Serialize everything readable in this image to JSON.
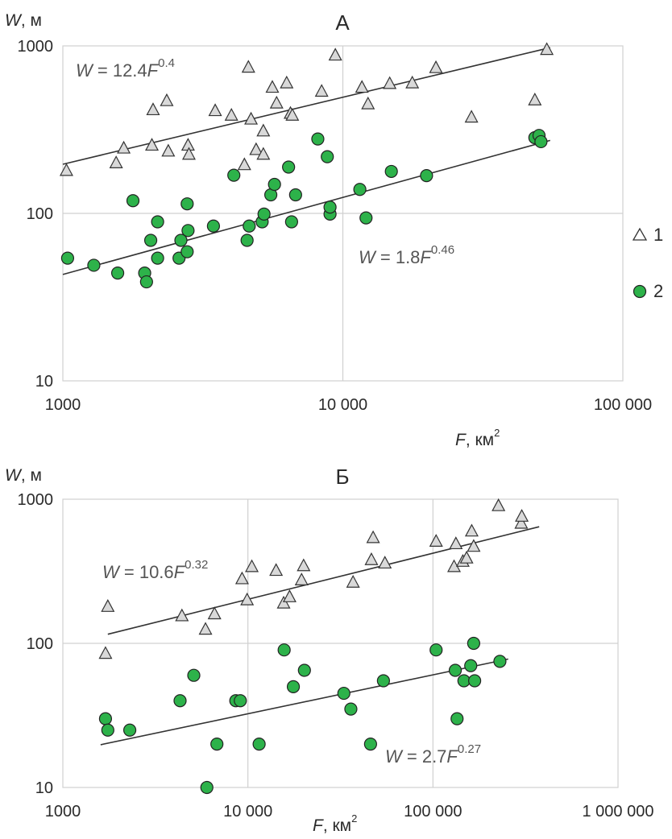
{
  "chart_data": [
    {
      "type": "scatter",
      "title": "А",
      "xlabel_var": "F",
      "xlabel_unit": ", км",
      "xlabel_exp": "2",
      "ylabel_var": "W",
      "ylabel_unit": ", м",
      "x_scale": "log",
      "y_scale": "log",
      "xlim": [
        1000,
        100000
      ],
      "ylim": [
        10,
        1000
      ],
      "x_tick_values": [
        1000,
        10000,
        100000
      ],
      "x_tick_labels": [
        "1000",
        "10 000",
        "100 000"
      ],
      "y_tick_values": [
        10,
        100,
        1000
      ],
      "y_tick_labels": [
        "10",
        "100",
        "1000"
      ],
      "grid": true,
      "legend": "right",
      "series": [
        {
          "name": "1",
          "marker": "triangle",
          "color": "#d9d9d9",
          "points": [
            [
              1030,
              180
            ],
            [
              1550,
              200
            ],
            [
              1650,
              245
            ],
            [
              2080,
              255
            ],
            [
              2380,
              235
            ],
            [
              2800,
              255
            ],
            [
              2820,
              225
            ],
            [
              2100,
              415
            ],
            [
              2350,
              470
            ],
            [
              3500,
              410
            ],
            [
              4000,
              385
            ],
            [
              4700,
              365
            ],
            [
              4600,
              745
            ],
            [
              4900,
              240
            ],
            [
              5200,
              310
            ],
            [
              5200,
              225
            ],
            [
              4450,
              195
            ],
            [
              5600,
              565
            ],
            [
              5800,
              455
            ],
            [
              6300,
              600
            ],
            [
              6500,
              395
            ],
            [
              6600,
              385
            ],
            [
              8400,
              535
            ],
            [
              9400,
              880
            ],
            [
              11700,
              565
            ],
            [
              12300,
              450
            ],
            [
              14700,
              595
            ],
            [
              17700,
              600
            ],
            [
              21500,
              740
            ],
            [
              28800,
              375
            ],
            [
              48500,
              475
            ],
            [
              53500,
              950
            ]
          ]
        },
        {
          "name": "2",
          "marker": "circle",
          "color": "#2db24a",
          "points": [
            [
              1040,
              54
            ],
            [
              1290,
              49
            ],
            [
              1570,
              44
            ],
            [
              1780,
              119
            ],
            [
              1960,
              44
            ],
            [
              1990,
              39
            ],
            [
              2060,
              69
            ],
            [
              2180,
              89
            ],
            [
              2180,
              54
            ],
            [
              2600,
              54
            ],
            [
              2640,
              69
            ],
            [
              2780,
              114
            ],
            [
              2780,
              59
            ],
            [
              2800,
              79
            ],
            [
              3450,
              84
            ],
            [
              4080,
              169
            ],
            [
              4550,
              69
            ],
            [
              4630,
              84
            ],
            [
              5150,
              89
            ],
            [
              5230,
              99
            ],
            [
              5530,
              129
            ],
            [
              5700,
              149
            ],
            [
              6400,
              189
            ],
            [
              6560,
              89
            ],
            [
              6780,
              129
            ],
            [
              8140,
              278
            ],
            [
              8800,
              218
            ],
            [
              9000,
              99
            ],
            [
              9000,
              109
            ],
            [
              11500,
              139
            ],
            [
              12100,
              94
            ],
            [
              14900,
              178
            ],
            [
              19900,
              168
            ],
            [
              48500,
              283
            ],
            [
              50200,
              292
            ],
            [
              51000,
              268
            ]
          ]
        }
      ],
      "fits": [
        {
          "series": "1",
          "a": 12.4,
          "b": 0.4,
          "x_from": 1000,
          "x_to": 55000,
          "label_lhs": "W",
          "label_eq": " = 12.4",
          "label_var": "F",
          "label_exp": "0.4"
        },
        {
          "series": "2",
          "a": 1.8,
          "b": 0.46,
          "x_from": 1000,
          "x_to": 55000,
          "label_lhs": "W",
          "label_eq": " = 1.8",
          "label_var": "F",
          "label_exp": "0.46"
        }
      ],
      "legend_entries": [
        {
          "label": "1",
          "marker": "triangle"
        },
        {
          "label": "2",
          "marker": "circle"
        }
      ]
    },
    {
      "type": "scatter",
      "title": "Б",
      "xlabel_var": "F",
      "xlabel_unit": ", км",
      "xlabel_exp": "2",
      "ylabel_var": "W",
      "ylabel_unit": ", м",
      "x_scale": "log",
      "y_scale": "log",
      "xlim": [
        1000,
        1000000
      ],
      "ylim": [
        10,
        1000
      ],
      "x_tick_values": [
        1000,
        10000,
        100000,
        1000000
      ],
      "x_tick_labels": [
        "1000",
        "10 000",
        "100 000",
        "1 000 000"
      ],
      "y_tick_values": [
        10,
        100,
        1000
      ],
      "y_tick_labels": [
        "10",
        "100",
        "1000"
      ],
      "grid": true,
      "series": [
        {
          "name": "1",
          "marker": "triangle",
          "color": "#d9d9d9",
          "points": [
            [
              1700,
              85
            ],
            [
              1750,
              180
            ],
            [
              4400,
              155
            ],
            [
              5900,
              125
            ],
            [
              6600,
              160
            ],
            [
              9300,
              280
            ],
            [
              9900,
              200
            ],
            [
              10500,
              340
            ],
            [
              14200,
              320
            ],
            [
              15600,
              190
            ],
            [
              16800,
              210
            ],
            [
              19500,
              275
            ],
            [
              20000,
              345
            ],
            [
              37000,
              265
            ],
            [
              46500,
              380
            ],
            [
              47500,
              540
            ],
            [
              55000,
              360
            ],
            [
              104000,
              510
            ],
            [
              130000,
              340
            ],
            [
              133000,
              490
            ],
            [
              145000,
              370
            ],
            [
              152000,
              390
            ],
            [
              162000,
              600
            ],
            [
              166000,
              470
            ],
            [
              226000,
              900
            ],
            [
              300000,
              680
            ],
            [
              302000,
              760
            ]
          ]
        },
        {
          "name": "2",
          "marker": "circle",
          "color": "#2db24a",
          "points": [
            [
              1700,
              30
            ],
            [
              1750,
              25
            ],
            [
              2300,
              25
            ],
            [
              4300,
              40
            ],
            [
              5100,
              60
            ],
            [
              6000,
              10
            ],
            [
              6800,
              20
            ],
            [
              8600,
              40
            ],
            [
              9100,
              40
            ],
            [
              11500,
              20
            ],
            [
              15700,
              90
            ],
            [
              17600,
              50
            ],
            [
              20200,
              65
            ],
            [
              33000,
              45
            ],
            [
              36000,
              35
            ],
            [
              46000,
              20
            ],
            [
              54000,
              55
            ],
            [
              104000,
              90
            ],
            [
              132000,
              65
            ],
            [
              135000,
              30
            ],
            [
              147000,
              55
            ],
            [
              160000,
              70
            ],
            [
              166000,
              100
            ],
            [
              168000,
              55
            ],
            [
              230000,
              75
            ]
          ]
        }
      ],
      "fits": [
        {
          "series": "1",
          "a": 10.6,
          "b": 0.32,
          "x_from": 1750,
          "x_to": 375000,
          "label_lhs": "W",
          "label_eq": " = 10.6",
          "label_var": "F",
          "label_exp": "0.32"
        },
        {
          "series": "2",
          "a": 2.7,
          "b": 0.27,
          "x_from": 1600,
          "x_to": 255000,
          "label_lhs": "W",
          "label_eq": " = 2.7",
          "label_var": "F",
          "label_exp": "0.27"
        }
      ]
    }
  ]
}
